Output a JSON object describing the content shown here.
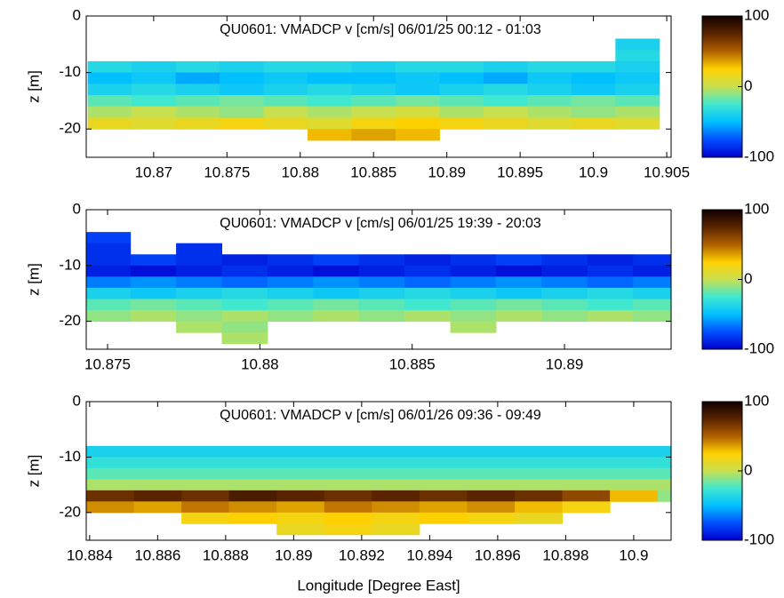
{
  "chart_data": [
    {
      "type": "heatmap",
      "title": "QU0601: VMADCP v [cm/s] 06/01/25 00:12 - 01:03",
      "ylabel": "z [m]",
      "xlim": [
        10.8654,
        10.9053
      ],
      "xticks": [
        10.87,
        10.875,
        10.88,
        10.885,
        10.89,
        10.895,
        10.9,
        10.905
      ],
      "ylim": [
        -25,
        0
      ],
      "yticks": [
        0,
        -10,
        -20
      ],
      "clim": [
        -100,
        100
      ],
      "cticks": [
        100,
        0,
        -100
      ],
      "colormap": [
        "#0000d0",
        "#0050ff",
        "#00c0ff",
        "#40e8d0",
        "#c8e050",
        "#ffd000",
        "#b06000",
        "#5a2400",
        "#100000"
      ],
      "x": [
        10.867,
        10.87,
        10.873,
        10.876,
        10.879,
        10.882,
        10.885,
        10.888,
        10.891,
        10.894,
        10.897,
        10.9,
        10.903
      ],
      "y": [
        -5,
        -7,
        -9,
        -11,
        -13,
        -15,
        -17,
        -19,
        -21
      ],
      "values": [
        [
          null,
          null,
          null,
          null,
          null,
          null,
          null,
          null,
          null,
          null,
          null,
          null,
          -40
        ],
        [
          null,
          null,
          null,
          null,
          null,
          null,
          null,
          null,
          null,
          null,
          null,
          null,
          -35
        ],
        [
          -35,
          -40,
          -35,
          -40,
          -35,
          -35,
          -40,
          -35,
          -35,
          -40,
          -35,
          -35,
          -40
        ],
        [
          -50,
          -45,
          -55,
          -50,
          -45,
          -50,
          -50,
          -45,
          -50,
          -55,
          -45,
          -50,
          -45
        ],
        [
          -40,
          -35,
          -40,
          -45,
          -40,
          -35,
          -40,
          -45,
          -40,
          -35,
          -40,
          -45,
          -40
        ],
        [
          -20,
          -25,
          -20,
          -15,
          -20,
          -25,
          -20,
          -15,
          -20,
          -25,
          -20,
          -15,
          -20
        ],
        [
          -5,
          0,
          -5,
          -10,
          0,
          -5,
          0,
          5,
          -5,
          0,
          -5,
          -10,
          -5
        ],
        [
          15,
          10,
          15,
          20,
          15,
          10,
          20,
          25,
          20,
          15,
          10,
          15,
          10
        ],
        [
          null,
          null,
          null,
          null,
          null,
          30,
          35,
          30,
          null,
          null,
          null,
          null,
          null
        ]
      ]
    },
    {
      "type": "heatmap",
      "title": "QU0601: VMADCP v [cm/s] 06/01/25 19:39 - 20:03",
      "ylabel": "z [m]",
      "xlim": [
        10.8743,
        10.8935
      ],
      "xticks": [
        10.875,
        10.88,
        10.885,
        10.89
      ],
      "ylim": [
        -25,
        0
      ],
      "yticks": [
        0,
        -10,
        -20
      ],
      "clim": [
        -100,
        100
      ],
      "cticks": [
        100,
        0,
        -100
      ],
      "colormap": [
        "#0000d0",
        "#0050ff",
        "#00c0ff",
        "#40e8d0",
        "#c8e050",
        "#ffd000",
        "#b06000",
        "#5a2400",
        "#100000"
      ],
      "x": [
        10.875,
        10.8765,
        10.878,
        10.8795,
        10.881,
        10.8825,
        10.884,
        10.8855,
        10.887,
        10.8885,
        10.89,
        10.8915,
        10.893
      ],
      "y": [
        -5,
        -7,
        -9,
        -11,
        -13,
        -15,
        -17,
        -19,
        -21,
        -23
      ],
      "values": [
        [
          -80,
          null,
          null,
          null,
          null,
          null,
          null,
          null,
          null,
          null,
          null,
          null,
          null
        ],
        [
          -85,
          null,
          -85,
          null,
          null,
          null,
          null,
          null,
          null,
          null,
          null,
          null,
          null
        ],
        [
          -85,
          -80,
          -85,
          -90,
          -85,
          -80,
          -85,
          -90,
          -85,
          -80,
          -85,
          -90,
          -85
        ],
        [
          -90,
          -95,
          -90,
          -85,
          -90,
          -95,
          -90,
          -85,
          -90,
          -95,
          -90,
          -85,
          -90
        ],
        [
          -65,
          -60,
          -65,
          -70,
          -65,
          -60,
          -65,
          -70,
          -65,
          -60,
          -65,
          -70,
          -65
        ],
        [
          -40,
          -45,
          -40,
          -35,
          -40,
          -45,
          -40,
          -35,
          -40,
          -45,
          -40,
          -35,
          -40
        ],
        [
          -20,
          -15,
          -20,
          -25,
          -20,
          -15,
          -20,
          -25,
          -20,
          -15,
          -20,
          -25,
          -20
        ],
        [
          -10,
          -5,
          -10,
          -5,
          -10,
          -5,
          -10,
          -5,
          -10,
          -5,
          -10,
          -5,
          -10
        ],
        [
          null,
          null,
          -5,
          -10,
          null,
          null,
          null,
          null,
          -5,
          null,
          null,
          null,
          null
        ],
        [
          null,
          null,
          null,
          -5,
          null,
          null,
          null,
          null,
          null,
          null,
          null,
          null,
          null
        ]
      ]
    },
    {
      "type": "heatmap",
      "title": "QU0601: VMADCP v [cm/s] 06/01/26 09:36 - 09:49",
      "ylabel": "z [m]",
      "xlabel": "Longitude [Degree East]",
      "xlim": [
        10.8839,
        10.9011
      ],
      "xticks": [
        10.884,
        10.886,
        10.888,
        10.89,
        10.892,
        10.894,
        10.896,
        10.898,
        10.9
      ],
      "ylim": [
        -25,
        0
      ],
      "yticks": [
        0,
        -10,
        -20
      ],
      "clim": [
        -100,
        100
      ],
      "cticks": [
        100,
        0,
        -100
      ],
      "colormap": [
        "#0000d0",
        "#0050ff",
        "#00c0ff",
        "#40e8d0",
        "#c8e050",
        "#ffd000",
        "#b06000",
        "#5a2400",
        "#100000"
      ],
      "x": [
        10.8846,
        10.886,
        10.8874,
        10.8888,
        10.8902,
        10.8916,
        10.893,
        10.8944,
        10.8958,
        10.8972,
        10.8986,
        10.9,
        10.9014
      ],
      "y": [
        -9,
        -11,
        -13,
        -15,
        -17,
        -19,
        -21,
        -23
      ],
      "values": [
        [
          -40,
          -40,
          -40,
          -40,
          -40,
          -40,
          -40,
          -40,
          -40,
          -40,
          -40,
          -40,
          -40
        ],
        [
          -30,
          -30,
          -30,
          -30,
          -30,
          -30,
          -30,
          -30,
          -30,
          -30,
          -30,
          -30,
          -30
        ],
        [
          -20,
          -20,
          -20,
          -20,
          -20,
          -20,
          -20,
          -20,
          -20,
          -20,
          -20,
          -20,
          -20
        ],
        [
          -5,
          -5,
          -5,
          -5,
          -5,
          -5,
          -5,
          -5,
          -5,
          -5,
          -5,
          -5,
          -5
        ],
        [
          70,
          75,
          70,
          80,
          75,
          70,
          75,
          70,
          75,
          70,
          60,
          30,
          -10
        ],
        [
          40,
          35,
          45,
          40,
          35,
          45,
          40,
          35,
          40,
          30,
          20,
          null,
          null
        ],
        [
          null,
          null,
          20,
          25,
          20,
          25,
          20,
          25,
          20,
          15,
          null,
          null,
          null
        ],
        [
          null,
          null,
          null,
          null,
          15,
          20,
          15,
          null,
          null,
          null,
          null,
          null,
          null
        ]
      ]
    }
  ]
}
